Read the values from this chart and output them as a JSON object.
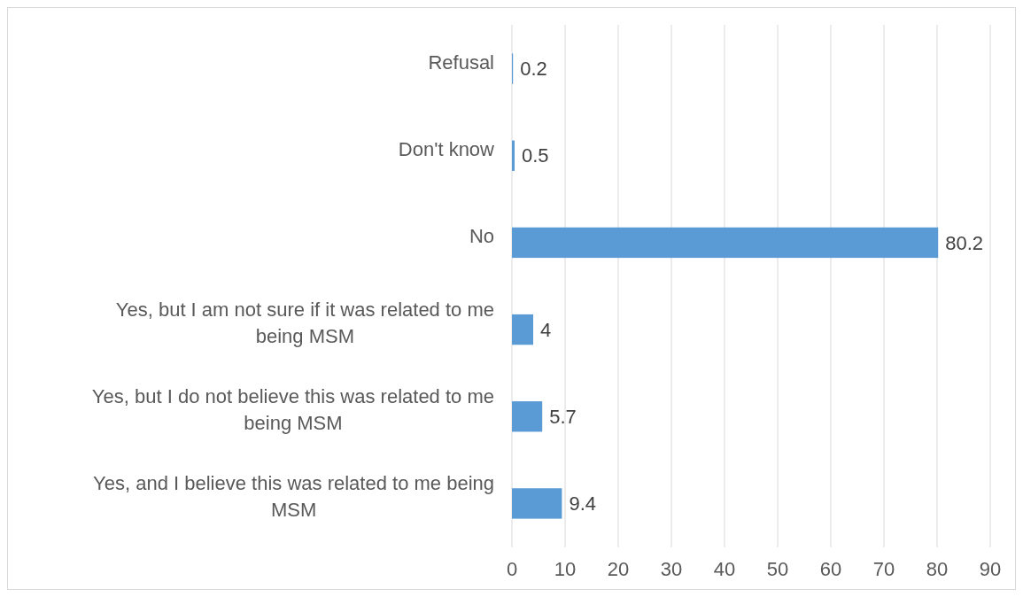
{
  "chart_data": {
    "type": "bar",
    "orientation": "horizontal",
    "categories": [
      "Refusal",
      "Don't know",
      "No",
      "Yes, but I am not sure if it was related to me being MSM",
      "Yes, but I do not believe this was related to me being MSM",
      "Yes, and I believe this was related to me being MSM"
    ],
    "values": [
      0.2,
      0.5,
      80.2,
      4,
      5.7,
      9.4
    ],
    "color": "#5b9bd5",
    "xlim": [
      0,
      90
    ],
    "xticks": [
      0,
      10,
      20,
      30,
      40,
      50,
      60,
      70,
      80,
      90
    ],
    "grid": "x",
    "data_labels": true
  }
}
